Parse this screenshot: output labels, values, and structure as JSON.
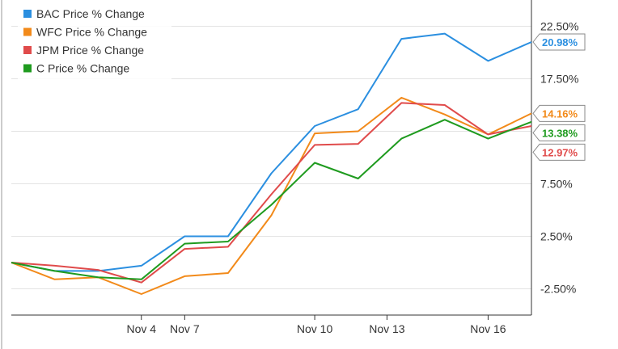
{
  "chart_data": {
    "type": "line",
    "title": "",
    "xlabel": "",
    "ylabel": "",
    "x": [
      "Nov 1",
      "Nov 2",
      "Nov 3",
      "Nov 4",
      "Nov 7",
      "Nov 8",
      "Nov 9",
      "Nov 10",
      "Nov 11",
      "Nov 14",
      "Nov 15",
      "Nov 16",
      "Nov 17"
    ],
    "xticks": [
      "Nov 4",
      "Nov 7",
      "Nov 10",
      "Nov 13",
      "Nov 16"
    ],
    "ylim": [
      -5,
      25
    ],
    "yticks": [
      "22.50%",
      "17.50%",
      "12.50%",
      "7.50%",
      "2.50%",
      "-2.50%"
    ],
    "ytick_values": [
      22.5,
      17.5,
      12.5,
      7.5,
      2.5,
      -2.5
    ],
    "grid": "horizontal",
    "legend_position": "top-left",
    "series": [
      {
        "name": "BAC Price % Change",
        "color": "#2b8fe0",
        "values": [
          0.0,
          -0.8,
          -0.8,
          -0.3,
          2.5,
          2.5,
          8.5,
          13.0,
          14.6,
          21.3,
          21.8,
          19.2,
          21.0
        ],
        "label": "20.98%"
      },
      {
        "name": "WFC Price % Change",
        "color": "#f28a1a",
        "values": [
          0.0,
          -1.6,
          -1.4,
          -3.0,
          -1.3,
          -1.0,
          4.5,
          12.3,
          12.5,
          15.7,
          14.1,
          12.2,
          14.2
        ],
        "label": "14.16%"
      },
      {
        "name": "JPM Price % Change",
        "color": "#e04b4b",
        "values": [
          0.0,
          -0.3,
          -0.7,
          -1.9,
          1.3,
          1.5,
          6.5,
          11.2,
          11.3,
          15.2,
          15.0,
          12.2,
          13.0
        ],
        "label": "12.97%"
      },
      {
        "name": "C Price % Change",
        "color": "#1f9b1f",
        "values": [
          0.0,
          -0.8,
          -1.4,
          -1.6,
          1.8,
          2.0,
          5.5,
          9.5,
          8.0,
          11.8,
          13.6,
          11.8,
          13.4
        ],
        "label": "13.38%"
      }
    ]
  }
}
